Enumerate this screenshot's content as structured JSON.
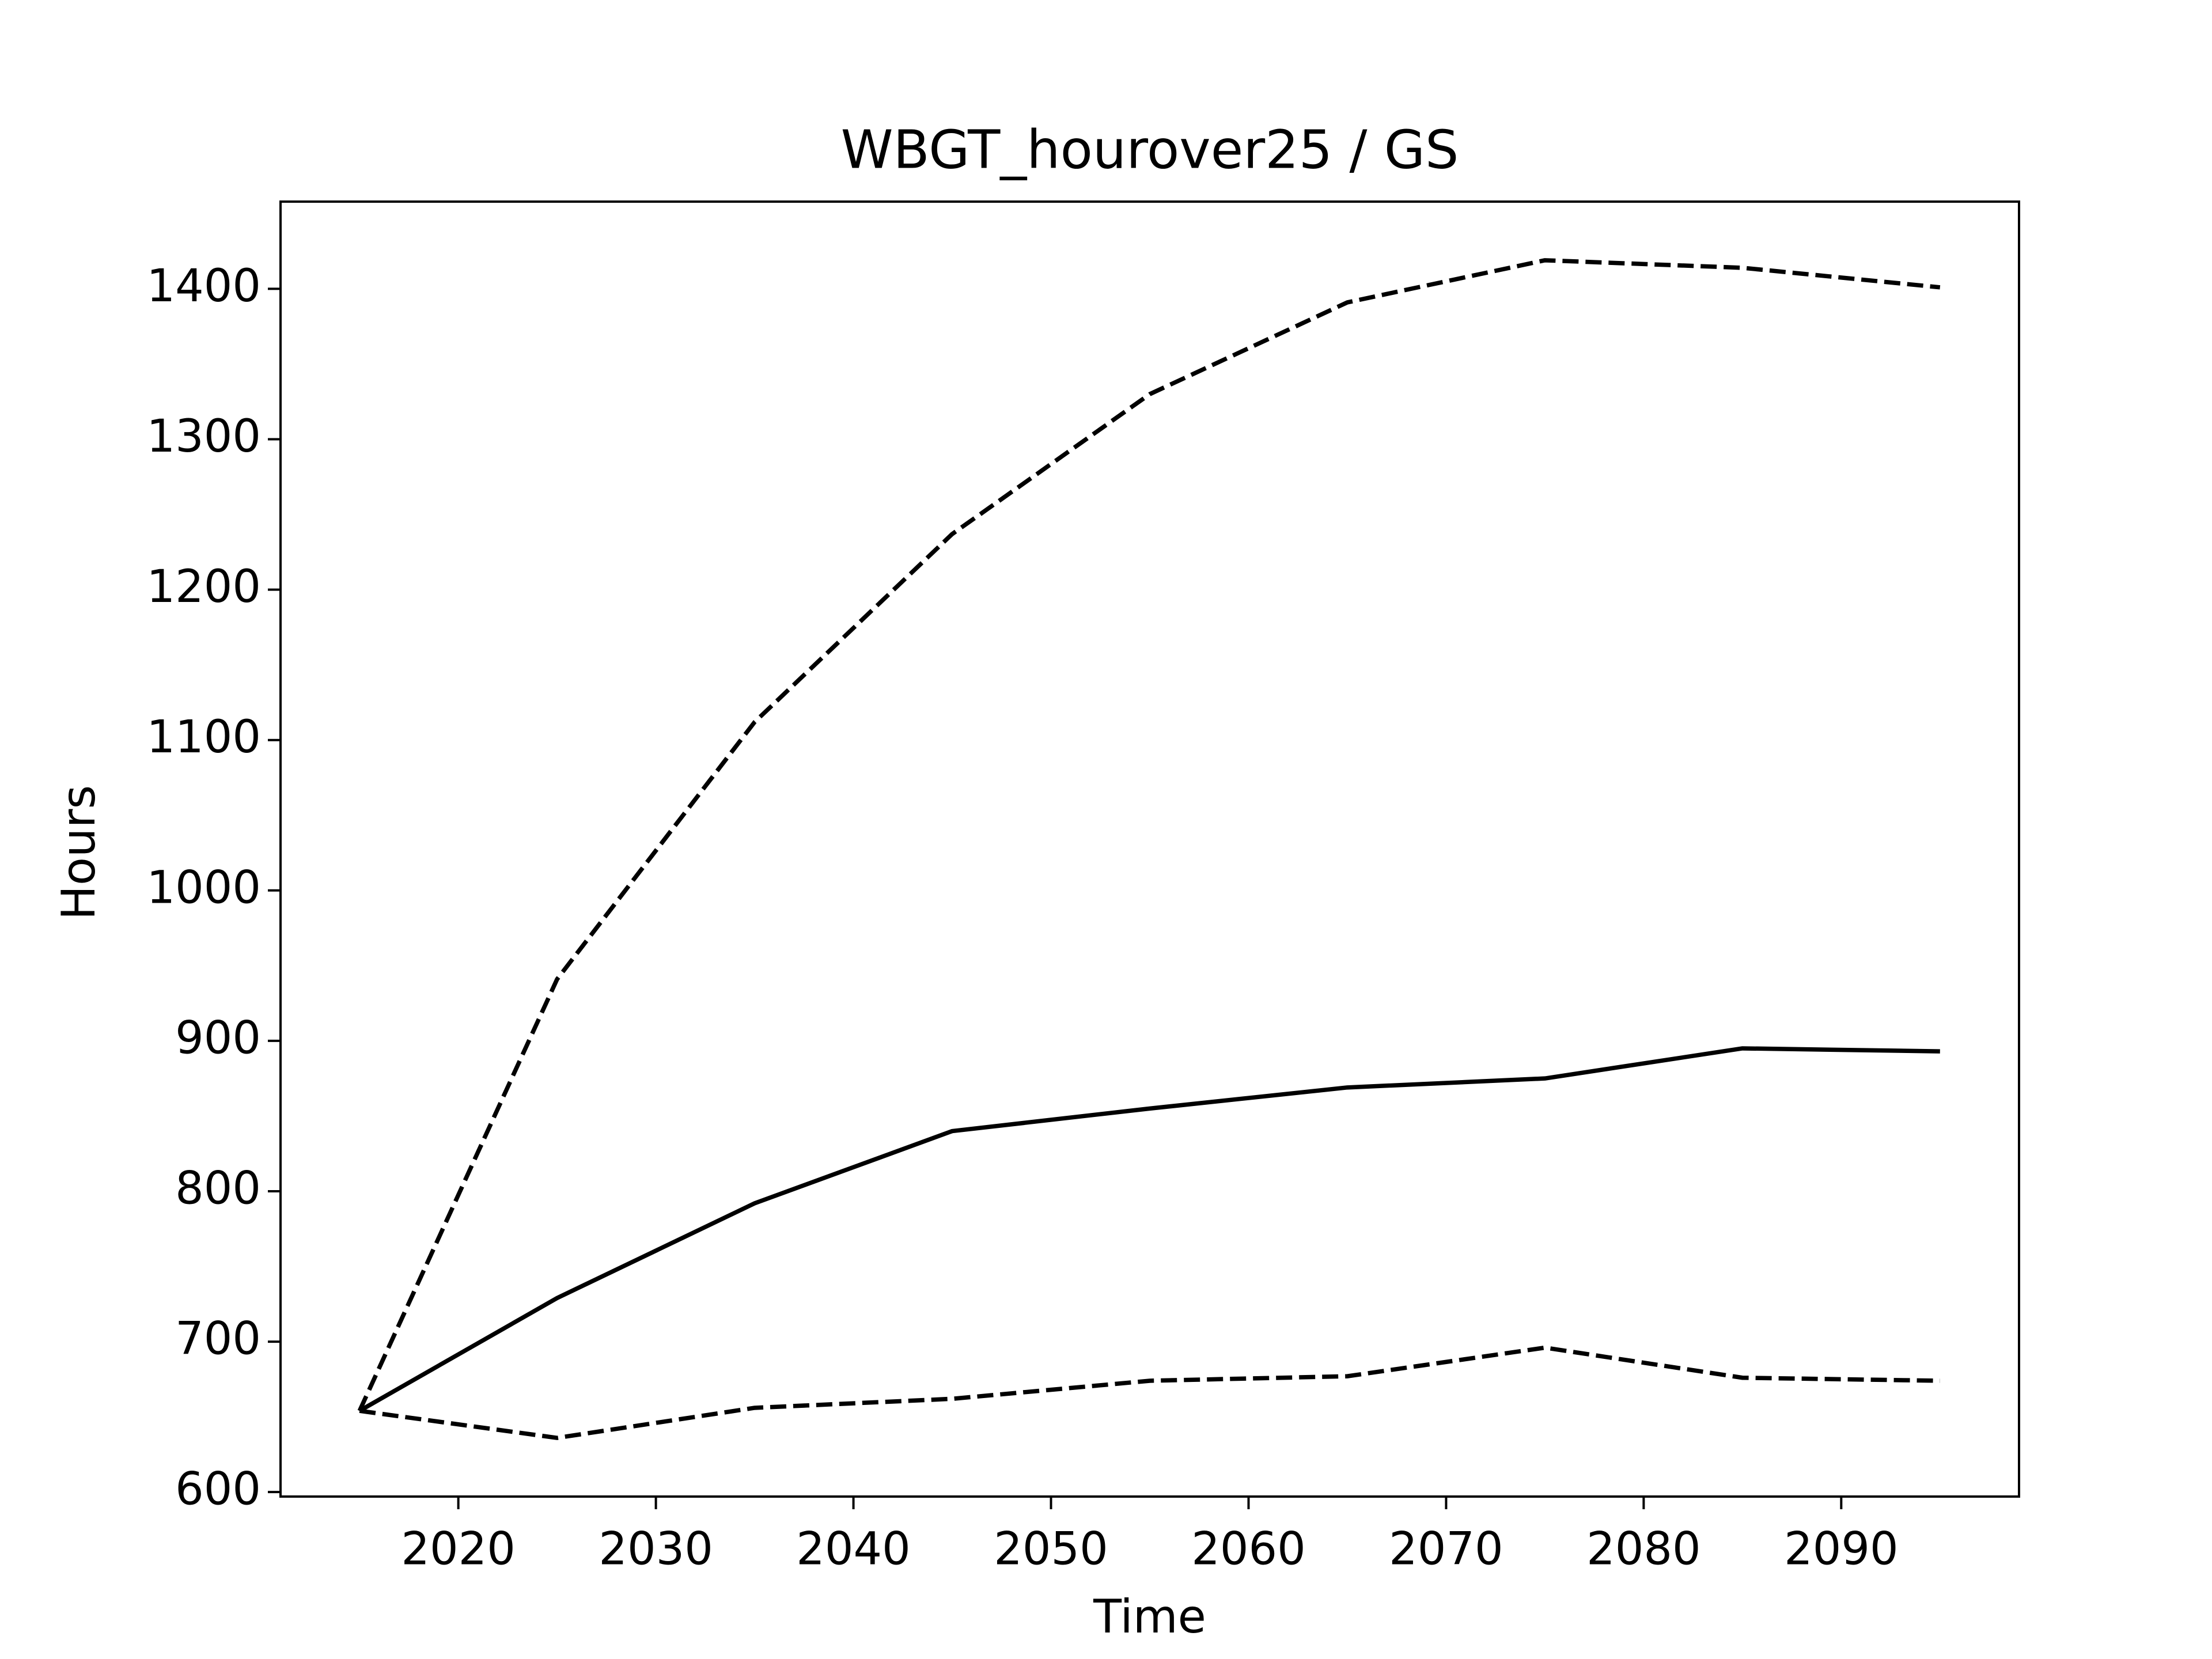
{
  "chart_data": {
    "type": "line",
    "title": "WBGT_hourover25 / GS",
    "xlabel": "Time",
    "ylabel": "Hours",
    "x": [
      2015,
      2025,
      2035,
      2045,
      2055,
      2065,
      2075,
      2085,
      2095
    ],
    "series": [
      {
        "color": "#000000",
        "dash": "solid",
        "values": [
          654,
          729,
          792,
          840,
          855,
          869,
          875,
          895,
          893
        ]
      },
      {
        "color": "#000000",
        "dash": "dashed",
        "values": [
          654,
          941,
          1112,
          1237,
          1330,
          1391,
          1419,
          1414,
          1401
        ]
      },
      {
        "color": "#000000",
        "dash": "dashed",
        "values": [
          654,
          636,
          656,
          662,
          674,
          677,
          696,
          676,
          674
        ]
      }
    ],
    "xlim": [
      2011,
      2099
    ],
    "xticks": [
      2020,
      2030,
      2040,
      2050,
      2060,
      2070,
      2080,
      2090
    ],
    "ylim": [
      597,
      1458
    ],
    "yticks": [
      600,
      700,
      800,
      900,
      1000,
      1100,
      1200,
      1300,
      1400
    ],
    "grid": false
  }
}
